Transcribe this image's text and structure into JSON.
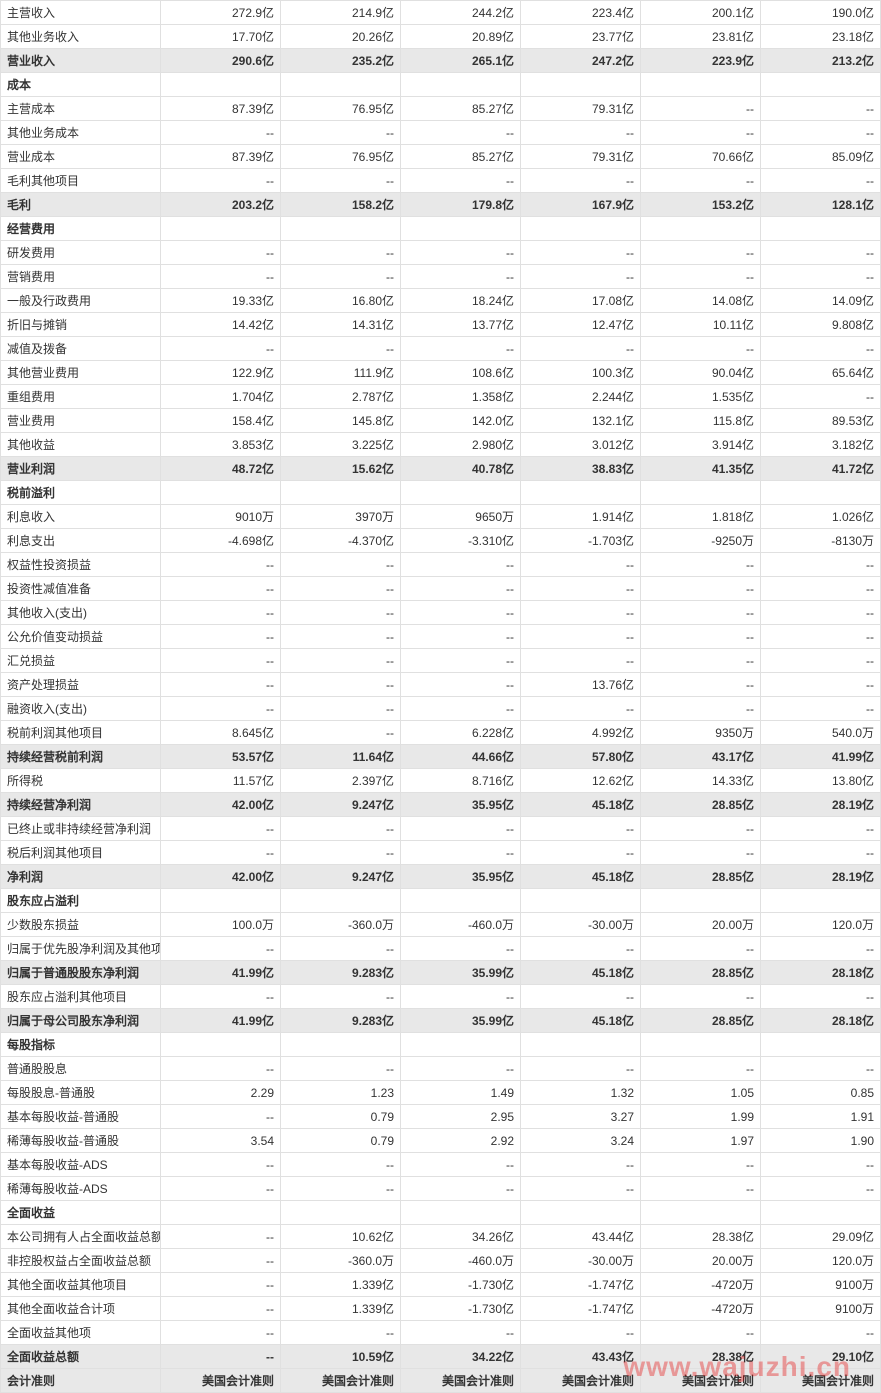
{
  "watermark": "www.wajuzhi.cn",
  "footer_label": "会计准则",
  "footer_value": "美国会计准则",
  "table": {
    "columns": [
      "label",
      "c1",
      "c2",
      "c3",
      "c4",
      "c5",
      "c6"
    ],
    "rows": [
      {
        "type": "row",
        "cells": [
          "主营收入",
          "272.9亿",
          "214.9亿",
          "244.2亿",
          "223.4亿",
          "200.1亿",
          "190.0亿"
        ]
      },
      {
        "type": "row",
        "cells": [
          "其他业务收入",
          "17.70亿",
          "20.26亿",
          "20.89亿",
          "23.77亿",
          "23.81亿",
          "23.18亿"
        ]
      },
      {
        "type": "sub",
        "cells": [
          "营业收入",
          "290.6亿",
          "235.2亿",
          "265.1亿",
          "247.2亿",
          "223.9亿",
          "213.2亿"
        ]
      },
      {
        "type": "sec",
        "cells": [
          "成本",
          "",
          "",
          "",
          "",
          "",
          ""
        ]
      },
      {
        "type": "row",
        "cells": [
          "主营成本",
          "87.39亿",
          "76.95亿",
          "85.27亿",
          "79.31亿",
          "--",
          "--"
        ]
      },
      {
        "type": "row",
        "cells": [
          "其他业务成本",
          "--",
          "--",
          "--",
          "--",
          "--",
          "--"
        ]
      },
      {
        "type": "row",
        "cells": [
          "营业成本",
          "87.39亿",
          "76.95亿",
          "85.27亿",
          "79.31亿",
          "70.66亿",
          "85.09亿"
        ]
      },
      {
        "type": "row",
        "cells": [
          "毛利其他项目",
          "--",
          "--",
          "--",
          "--",
          "--",
          "--"
        ]
      },
      {
        "type": "sub",
        "cells": [
          "毛利",
          "203.2亿",
          "158.2亿",
          "179.8亿",
          "167.9亿",
          "153.2亿",
          "128.1亿"
        ]
      },
      {
        "type": "sec",
        "cells": [
          "经营费用",
          "",
          "",
          "",
          "",
          "",
          ""
        ]
      },
      {
        "type": "row",
        "cells": [
          "研发费用",
          "--",
          "--",
          "--",
          "--",
          "--",
          "--"
        ]
      },
      {
        "type": "row",
        "cells": [
          "营销费用",
          "--",
          "--",
          "--",
          "--",
          "--",
          "--"
        ]
      },
      {
        "type": "row",
        "cells": [
          "一般及行政费用",
          "19.33亿",
          "16.80亿",
          "18.24亿",
          "17.08亿",
          "14.08亿",
          "14.09亿"
        ]
      },
      {
        "type": "row",
        "cells": [
          "折旧与摊销",
          "14.42亿",
          "14.31亿",
          "13.77亿",
          "12.47亿",
          "10.11亿",
          "9.808亿"
        ]
      },
      {
        "type": "row",
        "cells": [
          "减值及拨备",
          "--",
          "--",
          "--",
          "--",
          "--",
          "--"
        ]
      },
      {
        "type": "row",
        "cells": [
          "其他营业费用",
          "122.9亿",
          "111.9亿",
          "108.6亿",
          "100.3亿",
          "90.04亿",
          "65.64亿"
        ]
      },
      {
        "type": "row",
        "cells": [
          "重组费用",
          "1.704亿",
          "2.787亿",
          "1.358亿",
          "2.244亿",
          "1.535亿",
          "--"
        ]
      },
      {
        "type": "row",
        "cells": [
          "营业费用",
          "158.4亿",
          "145.8亿",
          "142.0亿",
          "132.1亿",
          "115.8亿",
          "89.53亿"
        ]
      },
      {
        "type": "row",
        "cells": [
          "其他收益",
          "3.853亿",
          "3.225亿",
          "2.980亿",
          "3.012亿",
          "3.914亿",
          "3.182亿"
        ]
      },
      {
        "type": "sub",
        "cells": [
          "营业利润",
          "48.72亿",
          "15.62亿",
          "40.78亿",
          "38.83亿",
          "41.35亿",
          "41.72亿"
        ]
      },
      {
        "type": "sec",
        "cells": [
          "税前溢利",
          "",
          "",
          "",
          "",
          "",
          ""
        ]
      },
      {
        "type": "row",
        "cells": [
          "利息收入",
          "9010万",
          "3970万",
          "9650万",
          "1.914亿",
          "1.818亿",
          "1.026亿"
        ]
      },
      {
        "type": "row",
        "cells": [
          "利息支出",
          "-4.698亿",
          "-4.370亿",
          "-3.310亿",
          "-1.703亿",
          "-9250万",
          "-8130万"
        ]
      },
      {
        "type": "row",
        "cells": [
          "权益性投资损益",
          "--",
          "--",
          "--",
          "--",
          "--",
          "--"
        ]
      },
      {
        "type": "row",
        "cells": [
          "投资性减值准备",
          "--",
          "--",
          "--",
          "--",
          "--",
          "--"
        ]
      },
      {
        "type": "row",
        "cells": [
          "其他收入(支出)",
          "--",
          "--",
          "--",
          "--",
          "--",
          "--"
        ]
      },
      {
        "type": "row",
        "cells": [
          "公允价值变动损益",
          "--",
          "--",
          "--",
          "--",
          "--",
          "--"
        ]
      },
      {
        "type": "row",
        "cells": [
          "汇兑损益",
          "--",
          "--",
          "--",
          "--",
          "--",
          "--"
        ]
      },
      {
        "type": "row",
        "cells": [
          "资产处理损益",
          "--",
          "--",
          "--",
          "13.76亿",
          "--",
          "--"
        ]
      },
      {
        "type": "row",
        "cells": [
          "融资收入(支出)",
          "--",
          "--",
          "--",
          "--",
          "--",
          "--"
        ]
      },
      {
        "type": "row",
        "cells": [
          "税前利润其他项目",
          "8.645亿",
          "--",
          "6.228亿",
          "4.992亿",
          "9350万",
          "540.0万"
        ]
      },
      {
        "type": "sub",
        "cells": [
          "持续经营税前利润",
          "53.57亿",
          "11.64亿",
          "44.66亿",
          "57.80亿",
          "43.17亿",
          "41.99亿"
        ]
      },
      {
        "type": "row",
        "cells": [
          "所得税",
          "11.57亿",
          "2.397亿",
          "8.716亿",
          "12.62亿",
          "14.33亿",
          "13.80亿"
        ]
      },
      {
        "type": "sub",
        "cells": [
          "持续经营净利润",
          "42.00亿",
          "9.247亿",
          "35.95亿",
          "45.18亿",
          "28.85亿",
          "28.19亿"
        ]
      },
      {
        "type": "row",
        "cells": [
          "已终止或非持续经营净利润",
          "--",
          "--",
          "--",
          "--",
          "--",
          "--"
        ]
      },
      {
        "type": "row",
        "cells": [
          "税后利润其他项目",
          "--",
          "--",
          "--",
          "--",
          "--",
          "--"
        ]
      },
      {
        "type": "sub",
        "cells": [
          "净利润",
          "42.00亿",
          "9.247亿",
          "35.95亿",
          "45.18亿",
          "28.85亿",
          "28.19亿"
        ]
      },
      {
        "type": "sec",
        "cells": [
          "股东应占溢利",
          "",
          "",
          "",
          "",
          "",
          ""
        ]
      },
      {
        "type": "row",
        "cells": [
          "少数股东损益",
          "100.0万",
          "-360.0万",
          "-460.0万",
          "-30.00万",
          "20.00万",
          "120.0万"
        ]
      },
      {
        "type": "row",
        "cells": [
          "归属于优先股净利润及其他项",
          "--",
          "--",
          "--",
          "--",
          "--",
          "--"
        ]
      },
      {
        "type": "sub",
        "cells": [
          "归属于普通股股东净利润",
          "41.99亿",
          "9.283亿",
          "35.99亿",
          "45.18亿",
          "28.85亿",
          "28.18亿"
        ]
      },
      {
        "type": "row",
        "cells": [
          "股东应占溢利其他项目",
          "--",
          "--",
          "--",
          "--",
          "--",
          "--"
        ]
      },
      {
        "type": "sub",
        "cells": [
          "归属于母公司股东净利润",
          "41.99亿",
          "9.283亿",
          "35.99亿",
          "45.18亿",
          "28.85亿",
          "28.18亿"
        ]
      },
      {
        "type": "sec",
        "cells": [
          "每股指标",
          "",
          "",
          "",
          "",
          "",
          ""
        ]
      },
      {
        "type": "row",
        "cells": [
          "普通股股息",
          "--",
          "--",
          "--",
          "--",
          "--",
          "--"
        ]
      },
      {
        "type": "row",
        "cells": [
          "每股股息-普通股",
          "2.29",
          "1.23",
          "1.49",
          "1.32",
          "1.05",
          "0.85"
        ]
      },
      {
        "type": "row",
        "cells": [
          "基本每股收益-普通股",
          "--",
          "0.79",
          "2.95",
          "3.27",
          "1.99",
          "1.91"
        ]
      },
      {
        "type": "row",
        "cells": [
          "稀薄每股收益-普通股",
          "3.54",
          "0.79",
          "2.92",
          "3.24",
          "1.97",
          "1.90"
        ]
      },
      {
        "type": "row",
        "cells": [
          "基本每股收益-ADS",
          "--",
          "--",
          "--",
          "--",
          "--",
          "--"
        ]
      },
      {
        "type": "row",
        "cells": [
          "稀薄每股收益-ADS",
          "--",
          "--",
          "--",
          "--",
          "--",
          "--"
        ]
      },
      {
        "type": "sec",
        "cells": [
          "全面收益",
          "",
          "",
          "",
          "",
          "",
          ""
        ]
      },
      {
        "type": "row",
        "cells": [
          "本公司拥有人占全面收益总额",
          "--",
          "10.62亿",
          "34.26亿",
          "43.44亿",
          "28.38亿",
          "29.09亿"
        ]
      },
      {
        "type": "row",
        "cells": [
          "非控股权益占全面收益总额",
          "--",
          "-360.0万",
          "-460.0万",
          "-30.00万",
          "20.00万",
          "120.0万"
        ]
      },
      {
        "type": "row",
        "cells": [
          "其他全面收益其他项目",
          "--",
          "1.339亿",
          "-1.730亿",
          "-1.747亿",
          "-4720万",
          "9100万"
        ]
      },
      {
        "type": "row",
        "cells": [
          "其他全面收益合计项",
          "--",
          "1.339亿",
          "-1.730亿",
          "-1.747亿",
          "-4720万",
          "9100万"
        ]
      },
      {
        "type": "row",
        "cells": [
          "全面收益其他项",
          "--",
          "--",
          "--",
          "--",
          "--",
          "--"
        ]
      },
      {
        "type": "sub",
        "cells": [
          "全面收益总额",
          "--",
          "10.59亿",
          "34.22亿",
          "43.43亿",
          "28.38亿",
          "29.10亿"
        ]
      }
    ]
  }
}
